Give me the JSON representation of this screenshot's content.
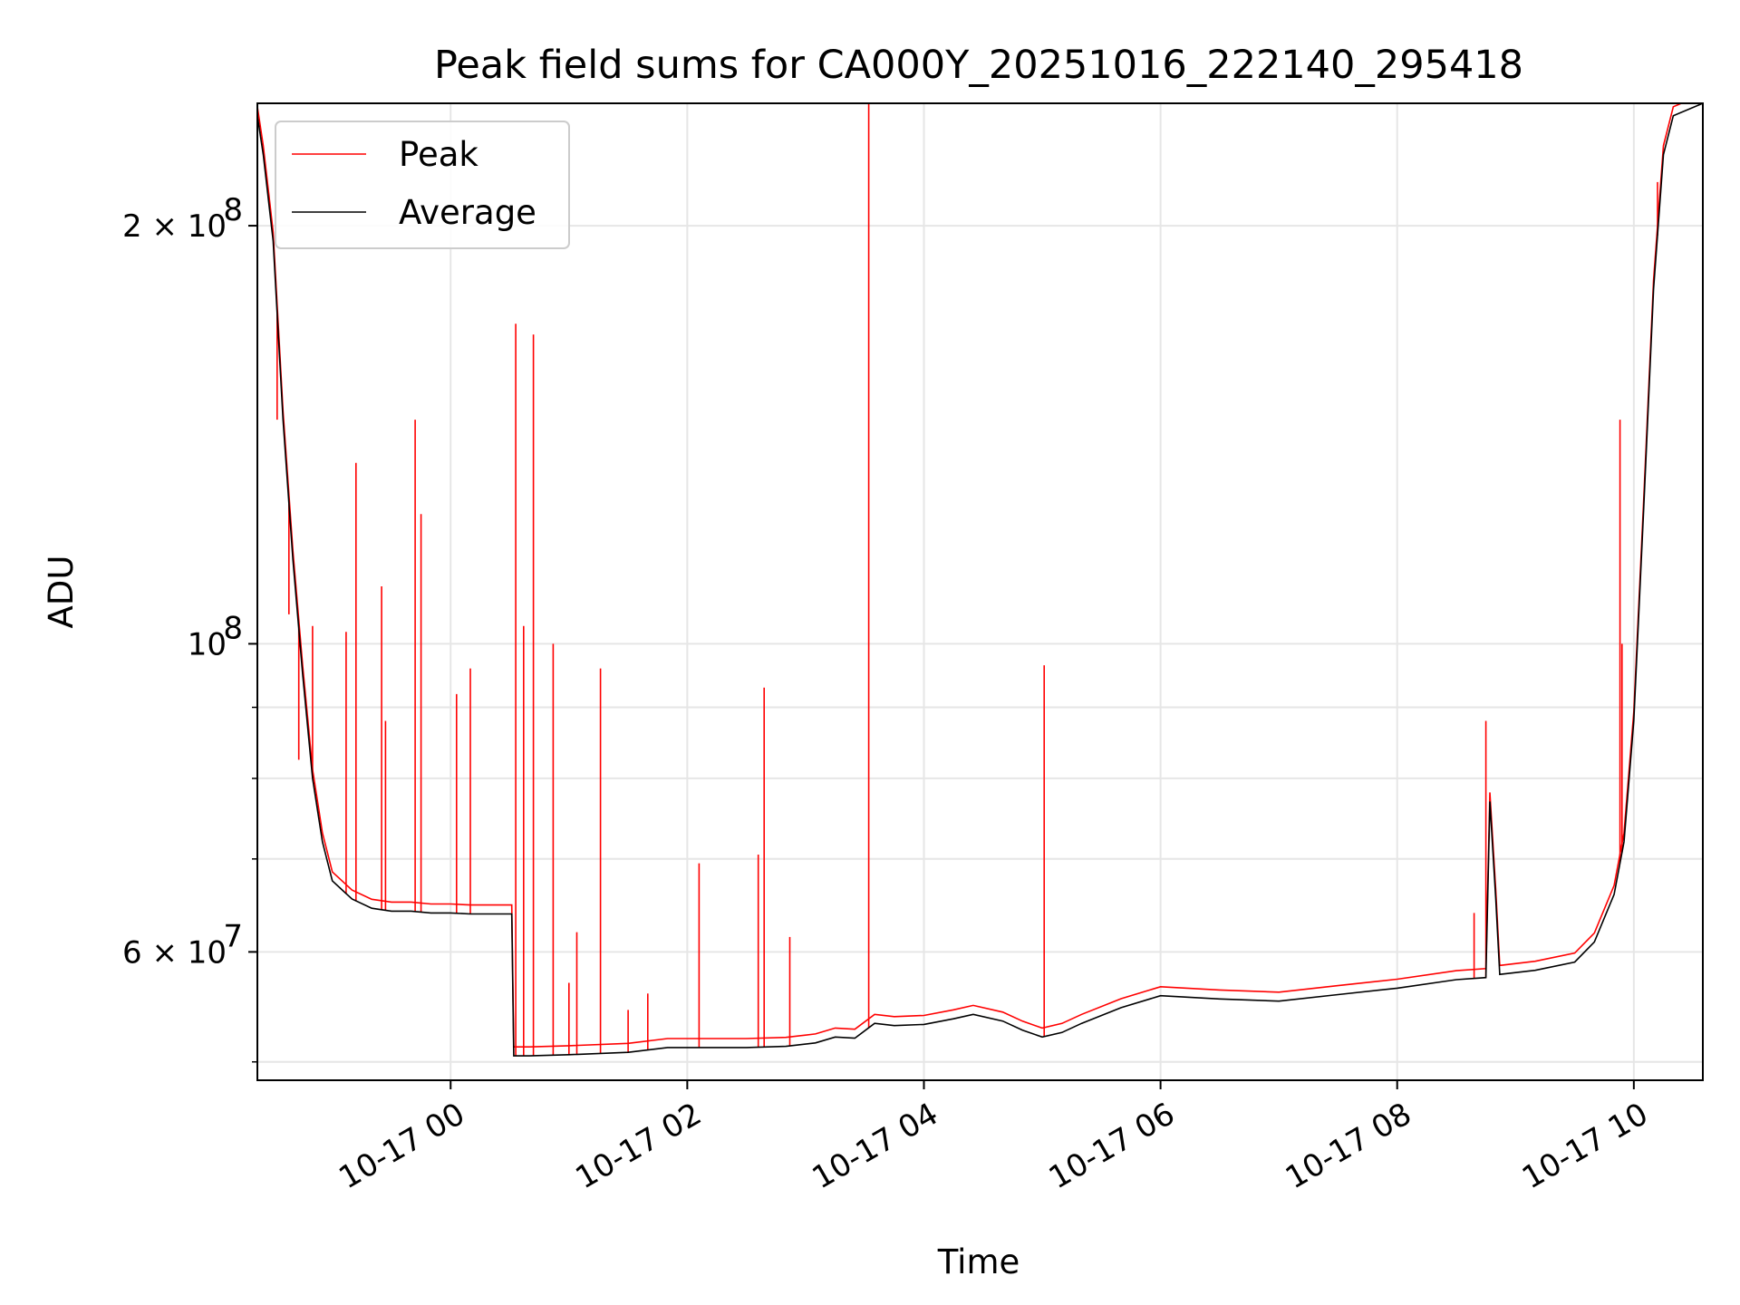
{
  "chart_data": {
    "type": "line",
    "title": "Peak field sums for CA000Y_20251016_222140_295418",
    "xlabel": "Time",
    "ylabel": "ADU",
    "yscale": "log",
    "grid": true,
    "legend": {
      "placement": "top-left",
      "entries": [
        "Peak",
        "Average"
      ]
    },
    "xlim": [
      "2025-10-16 22:22",
      "2025-10-17 10:35"
    ],
    "ylim": [
      48500000,
      245000000
    ],
    "x_ticks": [
      {
        "t": "2025-10-17 00:00",
        "label": "10-17 00"
      },
      {
        "t": "2025-10-17 02:00",
        "label": "10-17 02"
      },
      {
        "t": "2025-10-17 04:00",
        "label": "10-17 04"
      },
      {
        "t": "2025-10-17 06:00",
        "label": "10-17 06"
      },
      {
        "t": "2025-10-17 08:00",
        "label": "10-17 08"
      },
      {
        "t": "2025-10-17 10:00",
        "label": "10-17 10"
      }
    ],
    "y_ticks": [
      {
        "v": 60000000,
        "label": "6 × 10",
        "exp": "7"
      },
      {
        "v": 100000000,
        "label": "10",
        "exp": "8"
      },
      {
        "v": 200000000,
        "label": "2 × 10",
        "exp": "8"
      }
    ],
    "y_minor_ticks": [
      50000000,
      70000000,
      80000000,
      90000000
    ],
    "series": [
      {
        "name": "Average",
        "color": "#000000",
        "points": [
          [
            "2025-10-16 22:22",
            240000000
          ],
          [
            "2025-10-16 22:25",
            225000000
          ],
          [
            "2025-10-16 22:30",
            195000000
          ],
          [
            "2025-10-16 22:35",
            145000000
          ],
          [
            "2025-10-16 22:40",
            115000000
          ],
          [
            "2025-10-16 22:45",
            95000000
          ],
          [
            "2025-10-16 22:50",
            80000000
          ],
          [
            "2025-10-16 22:55",
            72000000
          ],
          [
            "2025-10-16 23:00",
            67500000
          ],
          [
            "2025-10-16 23:10",
            65500000
          ],
          [
            "2025-10-16 23:20",
            64500000
          ],
          [
            "2025-10-16 23:30",
            64200000
          ],
          [
            "2025-10-16 23:40",
            64200000
          ],
          [
            "2025-10-16 23:50",
            64000000
          ],
          [
            "2025-10-17 00:00",
            64000000
          ],
          [
            "2025-10-17 00:10",
            63900000
          ],
          [
            "2025-10-17 00:20",
            63900000
          ],
          [
            "2025-10-17 00:31",
            63900000
          ],
          [
            "2025-10-17 00:32",
            50500000
          ],
          [
            "2025-10-17 00:40",
            50500000
          ],
          [
            "2025-10-17 01:00",
            50600000
          ],
          [
            "2025-10-17 01:30",
            50800000
          ],
          [
            "2025-10-17 01:50",
            51200000
          ],
          [
            "2025-10-17 02:30",
            51200000
          ],
          [
            "2025-10-17 02:50",
            51300000
          ],
          [
            "2025-10-17 03:05",
            51600000
          ],
          [
            "2025-10-17 03:15",
            52100000
          ],
          [
            "2025-10-17 03:25",
            52000000
          ],
          [
            "2025-10-17 03:35",
            53300000
          ],
          [
            "2025-10-17 03:45",
            53100000
          ],
          [
            "2025-10-17 04:00",
            53200000
          ],
          [
            "2025-10-17 04:15",
            53700000
          ],
          [
            "2025-10-17 04:25",
            54100000
          ],
          [
            "2025-10-17 04:40",
            53500000
          ],
          [
            "2025-10-17 04:50",
            52700000
          ],
          [
            "2025-10-17 05:00",
            52100000
          ],
          [
            "2025-10-17 05:10",
            52500000
          ],
          [
            "2025-10-17 05:20",
            53300000
          ],
          [
            "2025-10-17 05:40",
            54700000
          ],
          [
            "2025-10-17 06:00",
            55800000
          ],
          [
            "2025-10-17 06:30",
            55500000
          ],
          [
            "2025-10-17 07:00",
            55300000
          ],
          [
            "2025-10-17 07:30",
            55900000
          ],
          [
            "2025-10-17 08:00",
            56500000
          ],
          [
            "2025-10-17 08:30",
            57300000
          ],
          [
            "2025-10-17 08:45",
            57500000
          ],
          [
            "2025-10-17 08:47",
            77000000
          ],
          [
            "2025-10-17 08:50",
            65500000
          ],
          [
            "2025-10-17 08:52",
            57800000
          ],
          [
            "2025-10-17 09:10",
            58200000
          ],
          [
            "2025-10-17 09:30",
            59000000
          ],
          [
            "2025-10-17 09:40",
            61000000
          ],
          [
            "2025-10-17 09:50",
            66000000
          ],
          [
            "2025-10-17 09:55",
            72000000
          ],
          [
            "2025-10-17 10:00",
            88000000
          ],
          [
            "2025-10-17 10:05",
            125000000
          ],
          [
            "2025-10-17 10:10",
            180000000
          ],
          [
            "2025-10-17 10:15",
            225000000
          ],
          [
            "2025-10-17 10:20",
            240000000
          ],
          [
            "2025-10-17 10:35",
            245000000
          ]
        ]
      },
      {
        "name": "Peak",
        "color": "#ff0000",
        "spikes": [
          [
            "2025-10-16 22:32",
            145000000
          ],
          [
            "2025-10-16 22:38",
            105000000
          ],
          [
            "2025-10-16 22:43",
            82500000
          ],
          [
            "2025-10-16 22:50",
            103000000
          ],
          [
            "2025-10-16 23:07",
            102000000
          ],
          [
            "2025-10-16 23:12",
            135000000
          ],
          [
            "2025-10-16 23:25",
            110000000
          ],
          [
            "2025-10-16 23:27",
            88000000
          ],
          [
            "2025-10-16 23:42",
            145000000
          ],
          [
            "2025-10-16 23:45",
            124000000
          ],
          [
            "2025-10-17 00:03",
            92000000
          ],
          [
            "2025-10-17 00:10",
            96000000
          ],
          [
            "2025-10-17 00:33",
            170000000
          ],
          [
            "2025-10-17 00:37",
            103000000
          ],
          [
            "2025-10-17 00:42",
            167000000
          ],
          [
            "2025-10-17 00:52",
            100000000
          ],
          [
            "2025-10-17 01:00",
            57000000
          ],
          [
            "2025-10-17 01:04",
            62000000
          ],
          [
            "2025-10-17 01:16",
            96000000
          ],
          [
            "2025-10-17 01:30",
            54500000
          ],
          [
            "2025-10-17 01:40",
            56000000
          ],
          [
            "2025-10-17 02:06",
            69500000
          ],
          [
            "2025-10-17 02:36",
            70500000
          ],
          [
            "2025-10-17 02:39",
            93000000
          ],
          [
            "2025-10-17 02:52",
            61500000
          ],
          [
            "2025-10-17 03:32",
            255000000
          ],
          [
            "2025-10-17 05:01",
            96500000
          ],
          [
            "2025-10-17 08:39",
            64000000
          ],
          [
            "2025-10-17 08:45",
            88000000
          ],
          [
            "2025-10-17 09:53",
            145000000
          ],
          [
            "2025-10-17 09:54",
            100000000
          ],
          [
            "2025-10-17 10:12",
            215000000
          ]
        ]
      }
    ]
  }
}
